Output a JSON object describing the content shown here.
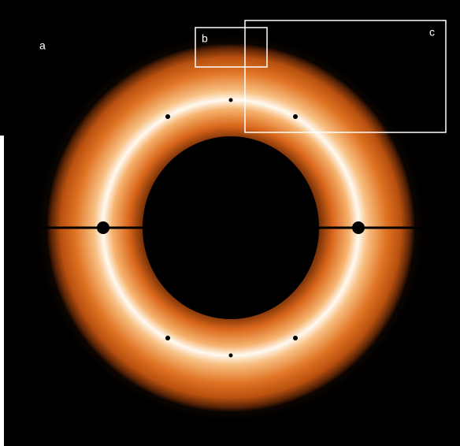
{
  "panel_labels": [
    "a",
    "b",
    "c"
  ]
}
